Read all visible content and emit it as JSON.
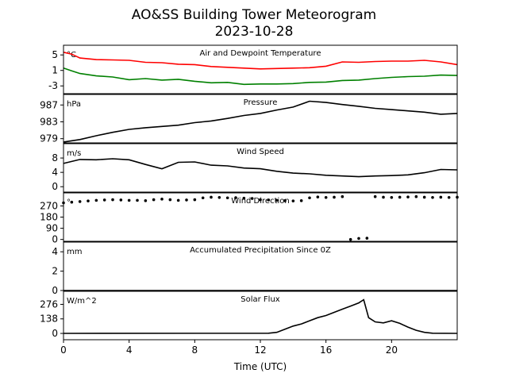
{
  "figure": {
    "title_line1": "AO&SS Building Tower Meteorogram",
    "title_line2": "2023-10-28",
    "xlabel": "Time (UTC)"
  },
  "chart_data": [
    {
      "type": "line",
      "title": "Air and Dewpoint Temperature",
      "unit": "°C",
      "xlim": [
        0,
        24
      ],
      "ylim": [
        -5,
        7.5
      ],
      "yticks": [
        -3,
        1,
        5
      ],
      "series": [
        {
          "color": "#ff0000",
          "x": [
            0,
            0.5,
            1,
            2,
            3,
            4,
            5,
            6,
            7,
            8,
            9,
            10,
            11,
            12,
            13,
            14,
            15,
            16,
            17,
            18,
            19,
            20,
            21,
            22,
            23,
            24
          ],
          "y": [
            5.7,
            5.2,
            4.2,
            3.8,
            3.7,
            3.6,
            3.1,
            3.0,
            2.6,
            2.5,
            2.0,
            1.8,
            1.6,
            1.4,
            1.5,
            1.6,
            1.7,
            2.1,
            3.2,
            3.1,
            3.3,
            3.4,
            3.4,
            3.6,
            3.2,
            2.5
          ]
        },
        {
          "color": "#008000",
          "x": [
            0,
            0.5,
            1,
            2,
            3,
            4,
            5,
            6,
            7,
            8,
            9,
            10,
            11,
            12,
            13,
            14,
            15,
            16,
            17,
            18,
            19,
            20,
            21,
            22,
            23,
            24
          ],
          "y": [
            1.6,
            0.9,
            0.2,
            -0.4,
            -0.7,
            -1.4,
            -1.1,
            -1.5,
            -1.3,
            -1.8,
            -2.2,
            -2.1,
            -2.6,
            -2.5,
            -2.5,
            -2.4,
            -2.1,
            -2.0,
            -1.6,
            -1.5,
            -1.1,
            -0.8,
            -0.6,
            -0.5,
            -0.2,
            -0.3
          ]
        }
      ]
    },
    {
      "type": "line",
      "title": "Pressure",
      "unit": "hPa",
      "xlim": [
        0,
        24
      ],
      "ylim": [
        978,
        989.5
      ],
      "yticks": [
        979,
        983,
        987
      ],
      "series": [
        {
          "color": "#000000",
          "x": [
            0,
            1,
            2,
            3,
            4,
            5,
            6,
            7,
            8,
            9,
            10,
            11,
            12,
            13,
            14,
            15,
            16,
            17,
            18,
            19,
            20,
            21,
            22,
            23,
            24
          ],
          "y": [
            978.2,
            978.8,
            979.7,
            980.5,
            981.2,
            981.6,
            981.9,
            982.2,
            982.8,
            983.2,
            983.8,
            984.5,
            985.0,
            985.8,
            986.5,
            987.9,
            987.6,
            987.1,
            986.7,
            986.2,
            985.9,
            985.6,
            985.3,
            984.8,
            985.0
          ]
        }
      ]
    },
    {
      "type": "line",
      "title": "Wind Speed",
      "unit": "m/s",
      "xlim": [
        0,
        24
      ],
      "ylim": [
        -1.5,
        12
      ],
      "yticks": [
        0,
        4,
        8
      ],
      "series": [
        {
          "color": "#000000",
          "x": [
            0,
            1,
            2,
            3,
            4,
            5,
            6,
            7,
            8,
            9,
            10,
            11,
            12,
            13,
            14,
            15,
            16,
            17,
            18,
            19,
            20,
            21,
            22,
            23,
            24
          ],
          "y": [
            6.5,
            7.6,
            7.5,
            7.8,
            7.5,
            6.2,
            5.0,
            6.8,
            6.9,
            6.0,
            5.8,
            5.2,
            5.0,
            4.3,
            3.8,
            3.6,
            3.2,
            3.0,
            2.8,
            3.0,
            3.1,
            3.3,
            3.9,
            4.8,
            4.7
          ]
        }
      ]
    },
    {
      "type": "scatter",
      "title": "Wind Direction",
      "unit": "°",
      "xlim": [
        0,
        24
      ],
      "ylim": [
        -15,
        375
      ],
      "yticks": [
        0,
        90,
        180,
        270
      ],
      "series": [
        {
          "color": "#000000",
          "x": [
            0,
            0.5,
            1,
            1.5,
            2,
            2.5,
            3,
            3.5,
            4,
            4.5,
            5,
            5.5,
            6,
            6.5,
            7,
            7.5,
            8,
            8.5,
            9,
            9.5,
            10,
            10.5,
            11,
            11.5,
            12,
            12.5,
            13,
            13.5,
            14,
            14.5,
            15,
            15.5,
            16,
            16.5,
            17,
            17.5,
            18,
            18.5,
            19,
            19.5,
            20,
            20.5,
            21,
            21.5,
            22,
            22.5,
            23,
            23.5,
            24
          ],
          "y": [
            295,
            300,
            305,
            310,
            315,
            318,
            320,
            318,
            315,
            315,
            312,
            320,
            325,
            320,
            315,
            318,
            320,
            335,
            340,
            338,
            335,
            336,
            332,
            330,
            320,
            318,
            315,
            312,
            310,
            312,
            335,
            342,
            338,
            340,
            345,
            0,
            8,
            10,
            345,
            340,
            338,
            340,
            342,
            345,
            340,
            338,
            340,
            338,
            340
          ]
        }
      ]
    },
    {
      "type": "line",
      "title": "Accumulated Precipitation Since 0Z",
      "unit": "mm",
      "xlim": [
        0,
        24
      ],
      "ylim": [
        0,
        5
      ],
      "yticks": [
        0,
        2,
        4
      ],
      "series": [
        {
          "color": "#000000",
          "x": [
            0,
            24
          ],
          "y": [
            0,
            0
          ]
        }
      ]
    },
    {
      "type": "line",
      "title": "Solar Flux",
      "unit": "W/m^2",
      "xlim": [
        0,
        24
      ],
      "ylim": [
        -60,
        400
      ],
      "yticks": [
        0,
        138,
        276
      ],
      "series": [
        {
          "color": "#000000",
          "x": [
            0,
            12.5,
            13,
            13.5,
            14,
            14.5,
            15,
            15.5,
            16,
            16.5,
            17,
            17.5,
            18,
            18.3,
            18.6,
            19,
            19.5,
            20,
            20.5,
            21,
            21.5,
            22,
            22.5,
            24
          ],
          "y": [
            0,
            2,
            10,
            40,
            70,
            90,
            120,
            150,
            170,
            200,
            230,
            260,
            290,
            320,
            150,
            110,
            100,
            120,
            95,
            60,
            30,
            10,
            2,
            0
          ]
        }
      ]
    }
  ],
  "xticks": [
    0,
    4,
    8,
    12,
    16,
    20
  ]
}
